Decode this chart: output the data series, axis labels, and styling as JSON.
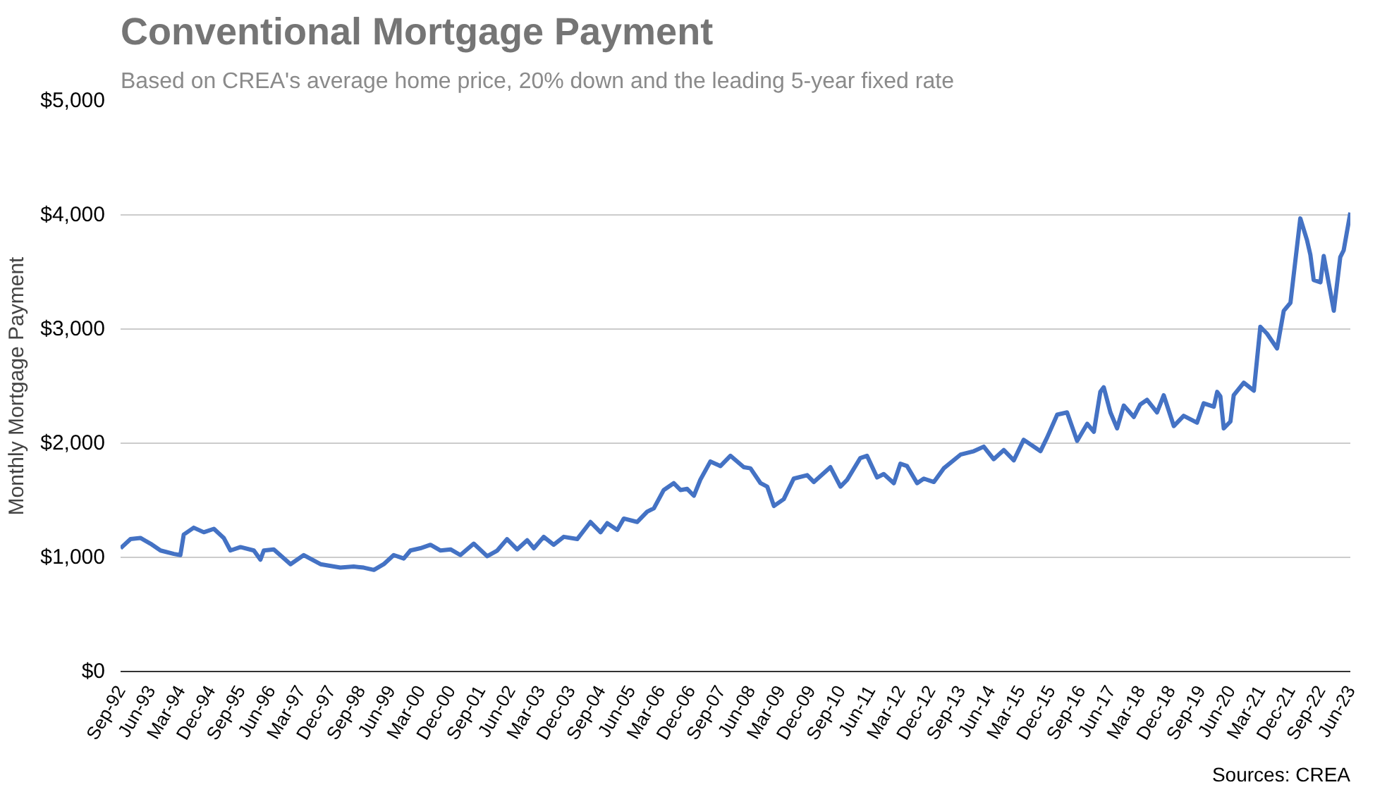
{
  "chart_data": {
    "type": "line",
    "title": "Conventional Mortgage Payment",
    "subtitle": "Based on CREA's average home price, 20% down and the leading 5-year fixed rate",
    "ylabel": "Monthly Mortgage Payment",
    "annotations": [
      "Sources: CREA"
    ],
    "x": [
      "1992-09",
      "1992-12",
      "1993-03",
      "1993-06",
      "1993-09",
      "1994-01",
      "1994-03",
      "1994-04",
      "1994-07",
      "1994-10",
      "1995-01",
      "1995-04",
      "1995-06",
      "1995-09",
      "1996-01",
      "1996-03",
      "1996-04",
      "1996-07",
      "1996-12",
      "1997-04",
      "1997-09",
      "1998-03",
      "1998-07",
      "1998-10",
      "1999-01",
      "1999-04",
      "1999-07",
      "1999-10",
      "1999-12",
      "2000-03",
      "2000-06",
      "2000-09",
      "2000-12",
      "2001-03",
      "2001-07",
      "2001-11",
      "2002-02",
      "2002-05",
      "2002-08",
      "2002-11",
      "2003-01",
      "2003-04",
      "2003-07",
      "2003-10",
      "2004-02",
      "2004-06",
      "2004-09",
      "2004-11",
      "2005-02",
      "2005-04",
      "2005-08",
      "2005-11",
      "2006-01",
      "2006-04",
      "2006-07",
      "2006-09",
      "2006-11",
      "2007-01",
      "2007-03",
      "2007-06",
      "2007-09",
      "2007-12",
      "2008-04",
      "2008-06",
      "2008-09",
      "2008-11",
      "2009-01",
      "2009-04",
      "2009-07",
      "2009-11",
      "2010-01",
      "2010-06",
      "2010-09",
      "2010-11",
      "2011-03",
      "2011-05",
      "2011-08",
      "2011-10",
      "2012-01",
      "2012-03",
      "2012-05",
      "2012-08",
      "2012-10",
      "2013-01",
      "2013-04",
      "2013-09",
      "2014-01",
      "2014-04",
      "2014-07",
      "2014-10",
      "2015-01",
      "2015-04",
      "2015-09",
      "2015-11",
      "2016-02",
      "2016-05",
      "2016-08",
      "2016-11",
      "2017-01",
      "2017-03",
      "2017-04",
      "2017-06",
      "2017-08",
      "2017-10",
      "2018-01",
      "2018-03",
      "2018-05",
      "2018-08",
      "2018-10",
      "2019-01",
      "2019-04",
      "2019-08",
      "2019-10",
      "2020-01",
      "2020-02",
      "2020-03",
      "2020-04",
      "2020-06",
      "2020-07",
      "2020-10",
      "2021-01",
      "2021-03",
      "2021-05",
      "2021-08",
      "2021-10",
      "2021-12",
      "2022-03",
      "2022-05",
      "2022-06",
      "2022-07",
      "2022-09",
      "2022-10",
      "2023-01",
      "2023-03",
      "2023-04",
      "2023-06"
    ],
    "series": [
      {
        "color": "#4472c4",
        "values": [
          1080,
          1160,
          1170,
          1120,
          1060,
          1030,
          1020,
          1200,
          1260,
          1220,
          1250,
          1170,
          1060,
          1090,
          1060,
          980,
          1060,
          1070,
          940,
          1020,
          940,
          910,
          920,
          910,
          890,
          940,
          1020,
          990,
          1060,
          1080,
          1110,
          1060,
          1070,
          1020,
          1120,
          1010,
          1060,
          1160,
          1070,
          1150,
          1080,
          1180,
          1110,
          1180,
          1160,
          1310,
          1220,
          1300,
          1240,
          1340,
          1310,
          1400,
          1430,
          1590,
          1650,
          1590,
          1600,
          1540,
          1680,
          1840,
          1800,
          1890,
          1790,
          1780,
          1650,
          1620,
          1450,
          1510,
          1690,
          1720,
          1660,
          1790,
          1620,
          1680,
          1870,
          1890,
          1700,
          1730,
          1650,
          1820,
          1800,
          1650,
          1690,
          1660,
          1780,
          1900,
          1930,
          1970,
          1860,
          1940,
          1850,
          2030,
          1930,
          2050,
          2250,
          2270,
          2020,
          2170,
          2100,
          2450,
          2490,
          2270,
          2130,
          2330,
          2230,
          2340,
          2380,
          2270,
          2420,
          2150,
          2240,
          2180,
          2350,
          2320,
          2450,
          2410,
          2130,
          2190,
          2420,
          2530,
          2460,
          3020,
          2960,
          2830,
          3160,
          3230,
          3970,
          3780,
          3650,
          3430,
          3410,
          3640,
          3160,
          3630,
          3690,
          4020
        ]
      }
    ],
    "xlim": [
      "1992-09",
      "2023-06"
    ],
    "xticks": [
      {
        "value": "1992-09",
        "label": "Sep-92"
      },
      {
        "value": "1993-06",
        "label": "Jun-93"
      },
      {
        "value": "1994-03",
        "label": "Mar-94"
      },
      {
        "value": "1994-12",
        "label": "Dec-94"
      },
      {
        "value": "1995-09",
        "label": "Sep-95"
      },
      {
        "value": "1996-06",
        "label": "Jun-96"
      },
      {
        "value": "1997-03",
        "label": "Mar-97"
      },
      {
        "value": "1997-12",
        "label": "Dec-97"
      },
      {
        "value": "1998-09",
        "label": "Sep-98"
      },
      {
        "value": "1999-06",
        "label": "Jun-99"
      },
      {
        "value": "2000-03",
        "label": "Mar-00"
      },
      {
        "value": "2000-12",
        "label": "Dec-00"
      },
      {
        "value": "2001-09",
        "label": "Sep-01"
      },
      {
        "value": "2002-06",
        "label": "Jun-02"
      },
      {
        "value": "2003-03",
        "label": "Mar-03"
      },
      {
        "value": "2003-12",
        "label": "Dec-03"
      },
      {
        "value": "2004-09",
        "label": "Sep-04"
      },
      {
        "value": "2005-06",
        "label": "Jun-05"
      },
      {
        "value": "2006-03",
        "label": "Mar-06"
      },
      {
        "value": "2006-12",
        "label": "Dec-06"
      },
      {
        "value": "2007-09",
        "label": "Sep-07"
      },
      {
        "value": "2008-06",
        "label": "Jun-08"
      },
      {
        "value": "2009-03",
        "label": "Mar-09"
      },
      {
        "value": "2009-12",
        "label": "Dec-09"
      },
      {
        "value": "2010-09",
        "label": "Sep-10"
      },
      {
        "value": "2011-06",
        "label": "Jun-11"
      },
      {
        "value": "2012-03",
        "label": "Mar-12"
      },
      {
        "value": "2012-12",
        "label": "Dec-12"
      },
      {
        "value": "2013-09",
        "label": "Sep-13"
      },
      {
        "value": "2014-06",
        "label": "Jun-14"
      },
      {
        "value": "2015-03",
        "label": "Mar-15"
      },
      {
        "value": "2015-12",
        "label": "Dec-15"
      },
      {
        "value": "2016-09",
        "label": "Sep-16"
      },
      {
        "value": "2017-06",
        "label": "Jun-17"
      },
      {
        "value": "2018-03",
        "label": "Mar-18"
      },
      {
        "value": "2018-12",
        "label": "Dec-18"
      },
      {
        "value": "2019-09",
        "label": "Sep-19"
      },
      {
        "value": "2020-06",
        "label": "Jun-20"
      },
      {
        "value": "2021-03",
        "label": "Mar-21"
      },
      {
        "value": "2021-12",
        "label": "Dec-21"
      },
      {
        "value": "2022-09",
        "label": "Sep-22"
      },
      {
        "value": "2023-06",
        "label": "Jun-23"
      }
    ],
    "ylim": [
      0,
      5000
    ],
    "yticks": [
      {
        "value": 0,
        "label": "$0"
      },
      {
        "value": 1000,
        "label": "$1,000"
      },
      {
        "value": 2000,
        "label": "$2,000"
      },
      {
        "value": 3000,
        "label": "$3,000"
      },
      {
        "value": 4000,
        "label": "$4,000"
      },
      {
        "value": 5000,
        "label": "$5,000"
      }
    ],
    "grid": "y",
    "marker": "none",
    "line_style": "solid"
  }
}
